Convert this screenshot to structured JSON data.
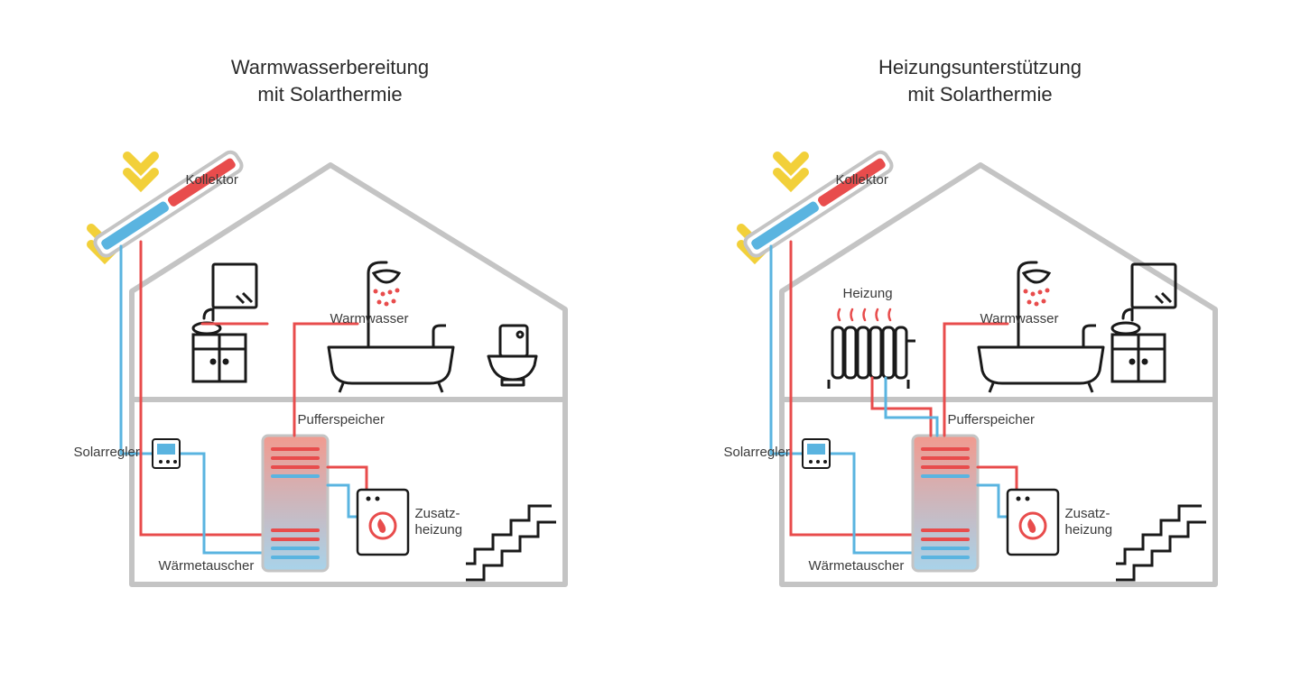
{
  "colors": {
    "hot": "#e84c4c",
    "cold": "#5ab4e0",
    "outline": "#c4c4c4",
    "dark": "#1a1a1a",
    "sun": "#f2d03a",
    "text": "#3a3a3a",
    "tank_grad_top": "#f19a8f",
    "tank_grad_bot": "#a8d3ea"
  },
  "panels": [
    {
      "title_l1": "Warmwasserbereitung",
      "title_l2": "mit Solarthermie",
      "has_heating": false,
      "labels": {
        "kollektor": "Kollektor",
        "warmwasser": "Warmwasser",
        "pufferspeicher": "Pufferspeicher",
        "solarregler": "Solarregler",
        "waermetauscher": "Wärmetauscher",
        "zusatzheizung": "Zusatz-\nheizung",
        "heizung": ""
      }
    },
    {
      "title_l1": "Heizungsunterstützung",
      "title_l2": "mit Solarthermie",
      "has_heating": true,
      "labels": {
        "kollektor": "Kollektor",
        "warmwasser": "Warmwasser",
        "pufferspeicher": "Pufferspeicher",
        "solarregler": "Solarregler",
        "waermetauscher": "Wärmetauscher",
        "zusatzheizung": "Zusatz-\nheizung",
        "heizung": "Heizung"
      }
    }
  ],
  "stroke": {
    "house": 6,
    "pipe": 3,
    "icon": 3
  }
}
